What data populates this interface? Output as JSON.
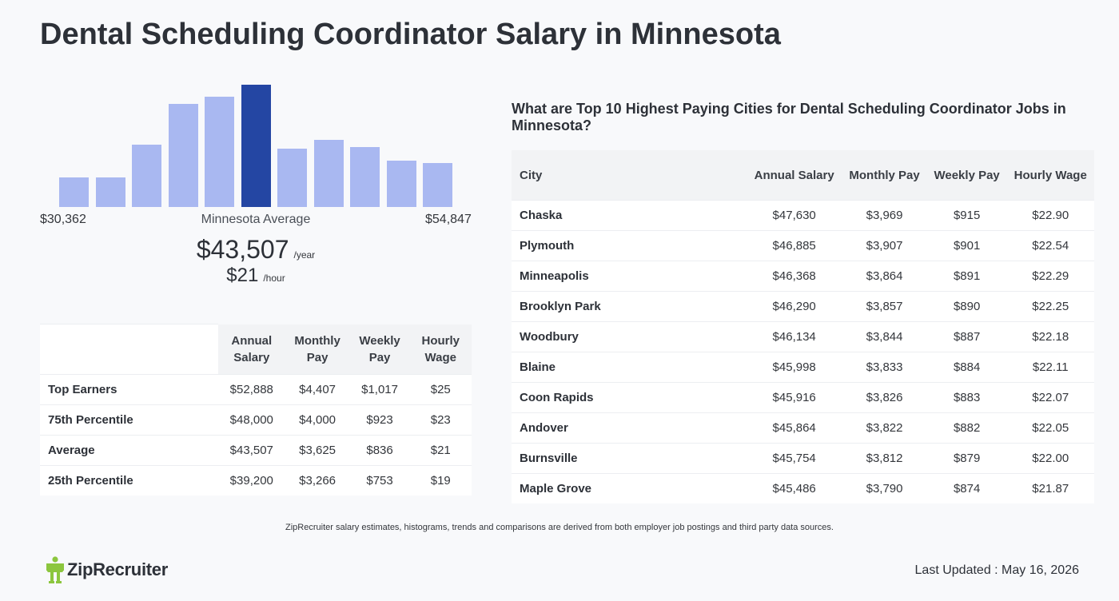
{
  "page": {
    "title": "Dental Scheduling Coordinator Salary in Minnesota"
  },
  "histogram": {
    "min_label": "$30,362",
    "max_label": "$54,847",
    "average_label": "Minnesota Average",
    "annual": "$43,507",
    "annual_unit": "/year",
    "hourly": "$21",
    "hourly_unit": "/hour",
    "bar_colors": {
      "normal": "#a9b8f1",
      "highlight": "#2446a3"
    }
  },
  "chart_data": {
    "type": "bar",
    "values": [
      24,
      24,
      51,
      84,
      90,
      100,
      48,
      55,
      49,
      38,
      36
    ],
    "highlight_index": 5,
    "ylim": [
      0,
      100
    ]
  },
  "stats_table": {
    "headers": [
      "",
      "Annual Salary",
      "Monthly Pay",
      "Weekly Pay",
      "Hourly Wage"
    ],
    "rows": [
      [
        "Top Earners",
        "$52,888",
        "$4,407",
        "$1,017",
        "$25"
      ],
      [
        "75th Percentile",
        "$48,000",
        "$4,000",
        "$923",
        "$23"
      ],
      [
        "Average",
        "$43,507",
        "$3,625",
        "$836",
        "$21"
      ],
      [
        "25th Percentile",
        "$39,200",
        "$3,266",
        "$753",
        "$19"
      ]
    ]
  },
  "cities": {
    "title": "What are Top 10 Highest Paying Cities for Dental Scheduling Coordinator Jobs in Minnesota?",
    "headers": [
      "City",
      "Annual Salary",
      "Monthly Pay",
      "Weekly Pay",
      "Hourly Wage"
    ],
    "rows": [
      [
        "Chaska",
        "$47,630",
        "$3,969",
        "$915",
        "$22.90"
      ],
      [
        "Plymouth",
        "$46,885",
        "$3,907",
        "$901",
        "$22.54"
      ],
      [
        "Minneapolis",
        "$46,368",
        "$3,864",
        "$891",
        "$22.29"
      ],
      [
        "Brooklyn Park",
        "$46,290",
        "$3,857",
        "$890",
        "$22.25"
      ],
      [
        "Woodbury",
        "$46,134",
        "$3,844",
        "$887",
        "$22.18"
      ],
      [
        "Blaine",
        "$45,998",
        "$3,833",
        "$884",
        "$22.11"
      ],
      [
        "Coon Rapids",
        "$45,916",
        "$3,826",
        "$883",
        "$22.07"
      ],
      [
        "Andover",
        "$45,864",
        "$3,822",
        "$882",
        "$22.05"
      ],
      [
        "Burnsville",
        "$45,754",
        "$3,812",
        "$879",
        "$22.00"
      ],
      [
        "Maple Grove",
        "$45,486",
        "$3,790",
        "$874",
        "$21.87"
      ]
    ]
  },
  "footer": {
    "disclaimer": "ZipRecruiter salary estimates, histograms, trends and comparisons are derived from both employer job postings and third party data sources.",
    "logo_text": "ZipRecruiter",
    "logo_icon": "ziprecruiter-logo-icon",
    "last_updated": "Last Updated : May 16, 2026"
  }
}
